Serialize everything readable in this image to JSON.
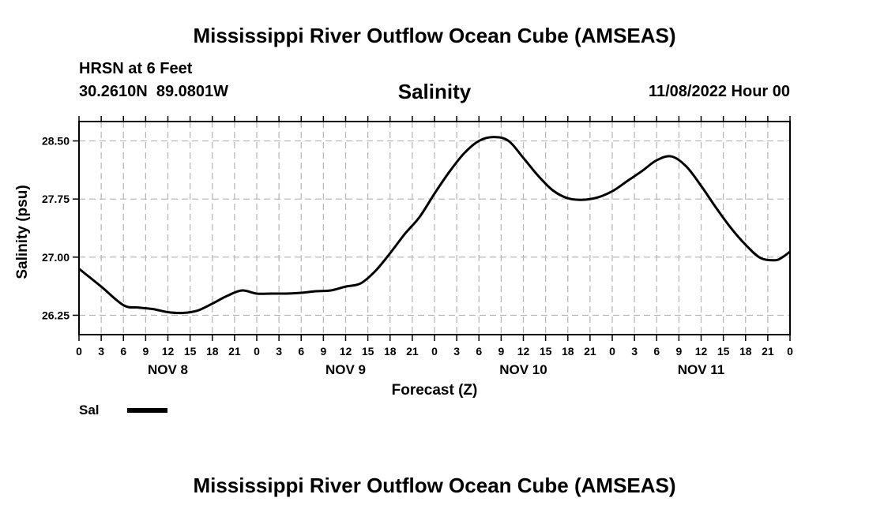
{
  "header": {
    "title": "Mississippi River Outflow Ocean Cube (AMSEAS)",
    "station": "HRSN at 6 Feet",
    "coords": "30.2610N  89.0801W",
    "variable": "Salinity",
    "datetime": "11/08/2022 Hour 00"
  },
  "footer": {
    "title": "Mississippi River Outflow Ocean Cube (AMSEAS)"
  },
  "legend": {
    "label": "Sal"
  },
  "colors": {
    "line": "#000000",
    "grid": "#b4b4b4"
  },
  "chart_data": {
    "type": "line",
    "title": "Salinity",
    "xlabel": "Forecast (Z)",
    "ylabel": "Salinity (psu)",
    "xlim": [
      0,
      96
    ],
    "ylim": [
      26.0,
      28.75
    ],
    "grid": true,
    "yticks": [
      26.25,
      27.0,
      27.75,
      28.5
    ],
    "ytick_labels": [
      "26.25",
      "27.00",
      "27.75",
      "28.50"
    ],
    "xticks": [
      0,
      3,
      6,
      9,
      12,
      15,
      18,
      21,
      24,
      27,
      30,
      33,
      36,
      39,
      42,
      45,
      48,
      51,
      54,
      57,
      60,
      63,
      66,
      69,
      72,
      75,
      78,
      81,
      84,
      87,
      90,
      93,
      96
    ],
    "xtick_labels": [
      "0",
      "3",
      "6",
      "9",
      "12",
      "15",
      "18",
      "21",
      "0",
      "3",
      "6",
      "9",
      "12",
      "15",
      "18",
      "21",
      "0",
      "3",
      "6",
      "9",
      "12",
      "15",
      "18",
      "21",
      "0",
      "3",
      "6",
      "9",
      "12",
      "15",
      "18",
      "21",
      "0"
    ],
    "day_labels": [
      {
        "label": "NOV 8",
        "x": 12
      },
      {
        "label": "NOV 9",
        "x": 36
      },
      {
        "label": "NOV 10",
        "x": 60
      },
      {
        "label": "NOV 11",
        "x": 84
      }
    ],
    "series": [
      {
        "name": "Sal",
        "x": [
          0,
          3,
          6,
          8,
          10,
          12,
          14,
          16,
          18,
          20,
          22,
          24,
          26,
          28,
          30,
          32,
          34,
          36,
          38,
          40,
          42,
          44,
          46,
          48,
          50,
          52,
          54,
          56,
          58,
          60,
          62,
          64,
          66,
          68,
          70,
          72,
          74,
          76,
          78,
          80,
          82,
          84,
          86,
          88,
          90,
          92,
          94,
          95,
          96
        ],
        "y": [
          26.85,
          26.62,
          26.38,
          26.35,
          26.33,
          26.29,
          26.28,
          26.31,
          26.4,
          26.5,
          26.57,
          26.53,
          26.53,
          26.53,
          26.54,
          26.56,
          26.57,
          26.62,
          26.66,
          26.82,
          27.05,
          27.3,
          27.52,
          27.82,
          28.1,
          28.34,
          28.5,
          28.55,
          28.5,
          28.28,
          28.05,
          27.86,
          27.76,
          27.74,
          27.77,
          27.85,
          27.98,
          28.11,
          28.25,
          28.3,
          28.17,
          27.92,
          27.64,
          27.38,
          27.16,
          26.99,
          26.96,
          27.0,
          27.07
        ]
      }
    ]
  }
}
